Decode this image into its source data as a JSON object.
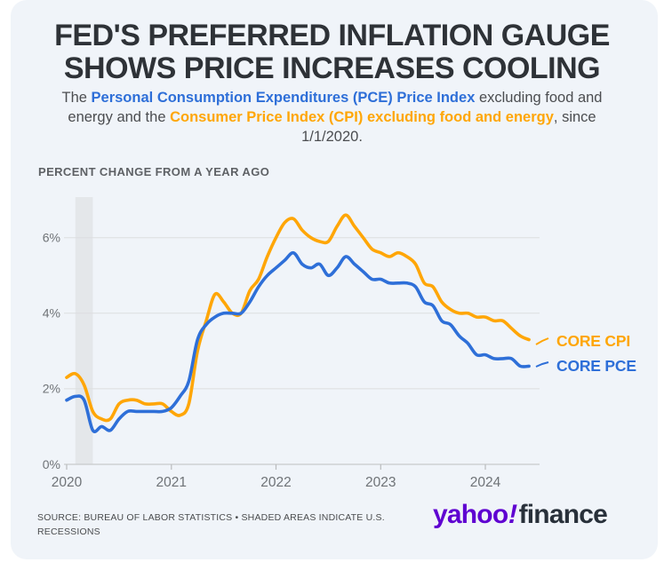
{
  "header": {
    "title_line1": "FED'S PREFERRED INFLATION GAUGE",
    "title_line2": "SHOWS PRICE INCREASES COOLING",
    "subtitle": {
      "prefix": "The ",
      "pce_text": "Personal Consumption Expenditures (PCE) Price Index",
      "middle": " excluding food and energy and the ",
      "cpi_text": "Consumer Price Index (CPI) excluding food and energy",
      "suffix": ", since 1/1/2020."
    }
  },
  "chart": {
    "axis_title": "PERCENT CHANGE FROM A YEAR AGO",
    "series_label_cpi": "CORE CPI",
    "series_label_pce": "CORE PCE"
  },
  "chart_data": {
    "type": "line",
    "title": "Core CPI vs Core PCE, percent change from a year ago",
    "ylabel": "PERCENT CHANGE FROM A YEAR AGO",
    "x_start": "2020-01",
    "x_frequency": "monthly",
    "x_axis_ticks": [
      "2020",
      "2021",
      "2022",
      "2023",
      "2024"
    ],
    "y_axis_ticks": [
      "6%",
      "4%",
      "2%",
      "0%"
    ],
    "ylim": [
      0,
      7.1
    ],
    "grid": true,
    "legend_position": "right-of-line-ends",
    "shaded_regions": [
      {
        "meaning": "U.S. recession",
        "x_start": "2020-02",
        "x_end": "2020-04",
        "color": "#e4e7ea"
      }
    ],
    "series": [
      {
        "name": "CORE CPI",
        "color": "#FFA606",
        "values": [
          2.3,
          2.4,
          2.1,
          1.4,
          1.2,
          1.2,
          1.6,
          1.7,
          1.7,
          1.6,
          1.6,
          1.6,
          1.4,
          1.3,
          1.6,
          3.0,
          3.8,
          4.5,
          4.3,
          4.0,
          4.0,
          4.6,
          4.9,
          5.5,
          6.0,
          6.4,
          6.5,
          6.2,
          6.0,
          5.9,
          5.9,
          6.3,
          6.6,
          6.3,
          6.0,
          5.7,
          5.6,
          5.5,
          5.6,
          5.5,
          5.3,
          4.8,
          4.7,
          4.3,
          4.1,
          4.0,
          4.0,
          3.9,
          3.9,
          3.8,
          3.8,
          3.6,
          3.4,
          3.3
        ]
      },
      {
        "name": "CORE PCE",
        "color": "#2E6FD8",
        "values": [
          1.7,
          1.8,
          1.7,
          0.9,
          1.0,
          0.9,
          1.2,
          1.4,
          1.4,
          1.4,
          1.4,
          1.4,
          1.5,
          1.8,
          2.2,
          3.3,
          3.7,
          3.9,
          4.0,
          4.0,
          4.0,
          4.3,
          4.7,
          5.0,
          5.2,
          5.4,
          5.6,
          5.3,
          5.2,
          5.3,
          5.0,
          5.2,
          5.5,
          5.3,
          5.1,
          4.9,
          4.9,
          4.8,
          4.8,
          4.8,
          4.7,
          4.3,
          4.2,
          3.8,
          3.7,
          3.4,
          3.2,
          2.9,
          2.9,
          2.8,
          2.8,
          2.8,
          2.6,
          2.6
        ]
      }
    ]
  },
  "footer": {
    "source_line1": "SOURCE: BUREAU OF LABOR STATISTICS • SHADED AREAS INDICATE U.S.",
    "source_line2": "RECESSIONS",
    "logo": {
      "yahoo": "yahoo",
      "bang": "!",
      "finance": "finance",
      "purple": "#5F01D1",
      "dark": "#28303a"
    }
  },
  "colors": {
    "card_background": "#f0f4f9",
    "core_cpi": "#FFA606",
    "core_pce": "#2E6FD8",
    "title_text": "#2e3237",
    "gridline": "#dcdedf",
    "recession_band": "#e4e7ea"
  }
}
